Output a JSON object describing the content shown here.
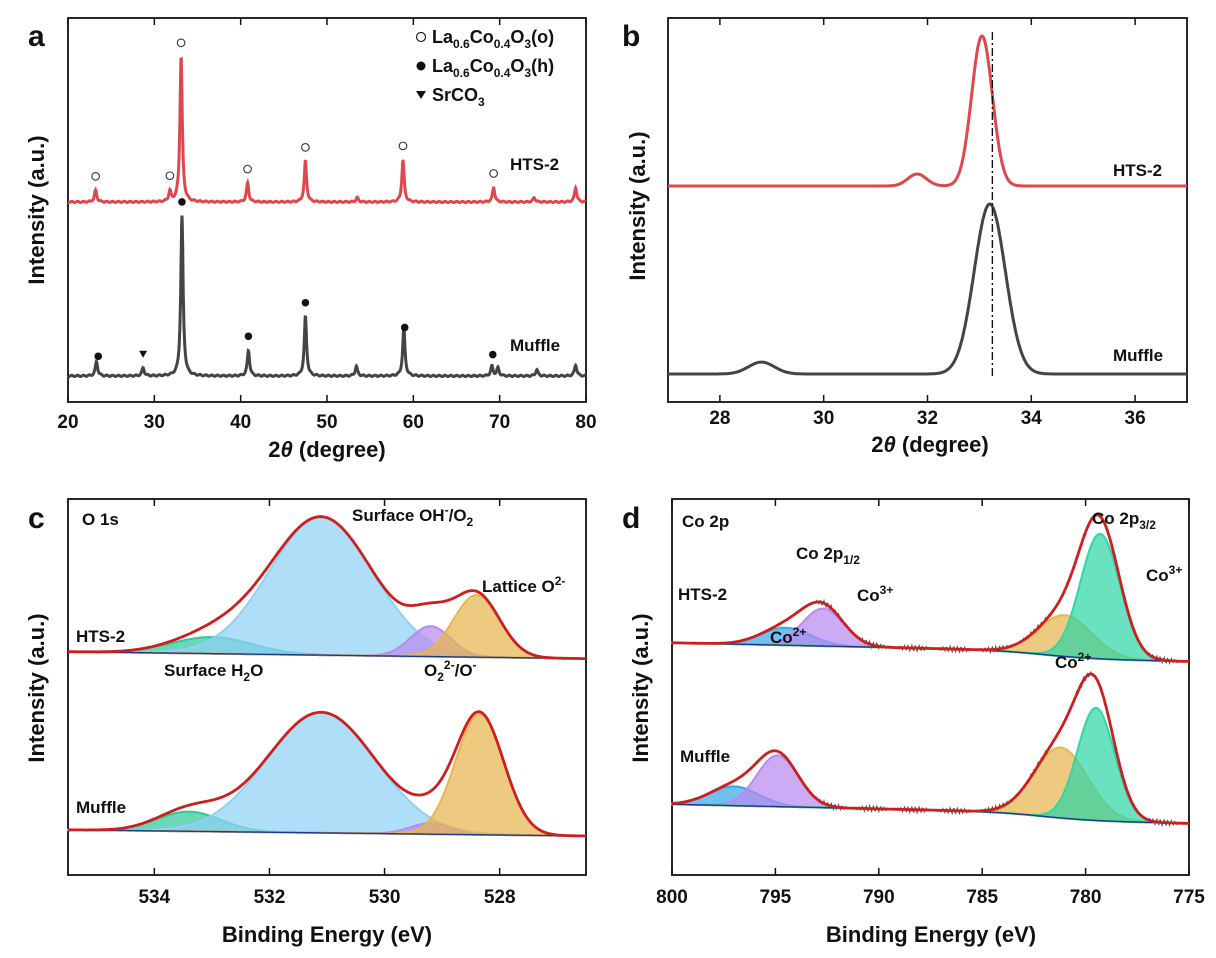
{
  "chart_data": [
    {
      "id": "a",
      "type": "line",
      "panel_label": "a",
      "xlabel": "2θ (degree)",
      "ylabel": "Intensity (a.u.)",
      "xlim": [
        20,
        80
      ],
      "xticks": [
        20,
        30,
        40,
        50,
        60,
        70,
        80
      ],
      "legend": [
        {
          "symbol": "○",
          "label": "La0.6Co0.4O3(o)",
          "base": "La",
          "sub1": "0.6",
          "mid": "Co",
          "sub2": "0.4",
          "mid2": "O",
          "sub3": "3",
          "tail": "(o)"
        },
        {
          "symbol": "●",
          "label": "La0.6Co0.4O3(h)",
          "base": "La",
          "sub1": "0.6",
          "mid": "Co",
          "sub2": "0.4",
          "mid2": "O",
          "sub3": "3",
          "tail": "(h)"
        },
        {
          "symbol": "▼",
          "label": "SrCO3",
          "base": "SrCO",
          "sub1": "3"
        }
      ],
      "series": [
        {
          "name": "HTS-2",
          "color": "#e0474c",
          "peaks": [
            {
              "x": 23.2,
              "h": 0.08
            },
            {
              "x": 31.8,
              "h": 0.07
            },
            {
              "x": 33.1,
              "h": 1.0
            },
            {
              "x": 40.8,
              "h": 0.13
            },
            {
              "x": 47.5,
              "h": 0.28
            },
            {
              "x": 53.5,
              "h": 0.03
            },
            {
              "x": 58.8,
              "h": 0.29
            },
            {
              "x": 69.3,
              "h": 0.1
            },
            {
              "x": 74.0,
              "h": 0.03
            },
            {
              "x": 78.8,
              "h": 0.1
            }
          ]
        },
        {
          "name": "Muffle",
          "color": "#444444",
          "peaks": [
            {
              "x": 23.3,
              "h": 0.09
            },
            {
              "x": 28.7,
              "h": 0.05
            },
            {
              "x": 33.2,
              "h": 1.0
            },
            {
              "x": 40.9,
              "h": 0.16
            },
            {
              "x": 47.5,
              "h": 0.37
            },
            {
              "x": 53.4,
              "h": 0.06
            },
            {
              "x": 58.9,
              "h": 0.3
            },
            {
              "x": 69.1,
              "h": 0.06
            },
            {
              "x": 69.8,
              "h": 0.05
            },
            {
              "x": 74.3,
              "h": 0.04
            },
            {
              "x": 78.8,
              "h": 0.07
            }
          ]
        }
      ],
      "markers": {
        "HTS-2": [
          {
            "x": 23.2,
            "symbol": "○"
          },
          {
            "x": 31.8,
            "symbol": "○"
          },
          {
            "x": 33.1,
            "symbol": "○"
          },
          {
            "x": 40.8,
            "symbol": "○"
          },
          {
            "x": 47.5,
            "symbol": "○"
          },
          {
            "x": 58.8,
            "symbol": "○"
          },
          {
            "x": 69.3,
            "symbol": "○"
          }
        ],
        "Muffle": [
          {
            "x": 23.5,
            "symbol": "●"
          },
          {
            "x": 28.7,
            "symbol": "▼"
          },
          {
            "x": 33.2,
            "symbol": "●"
          },
          {
            "x": 40.9,
            "symbol": "●"
          },
          {
            "x": 47.5,
            "symbol": "●"
          },
          {
            "x": 59.0,
            "symbol": "●"
          },
          {
            "x": 69.2,
            "symbol": "●"
          }
        ]
      }
    },
    {
      "id": "b",
      "type": "line",
      "panel_label": "b",
      "xlabel": "2θ (degree)",
      "ylabel": "Intensity (a.u.)",
      "xlim": [
        27,
        37
      ],
      "xticks": [
        28,
        30,
        32,
        34,
        36
      ],
      "reference_line_x": 33.25,
      "series": [
        {
          "name": "HTS-2",
          "color": "#e0474c",
          "peaks": [
            {
              "x": 31.8,
              "h": 0.08,
              "w": 0.18
            },
            {
              "x": 33.05,
              "h": 1.0,
              "w": 0.2
            }
          ]
        },
        {
          "name": "Muffle",
          "color": "#444444",
          "peaks": [
            {
              "x": 28.8,
              "h": 0.07,
              "w": 0.25
            },
            {
              "x": 33.2,
              "h": 1.0,
              "w": 0.3
            }
          ]
        }
      ]
    },
    {
      "id": "c",
      "type": "area",
      "panel_label": "c",
      "spectrum_label": "O 1s",
      "xlabel": "Binding Energy (eV)",
      "ylabel": "Intensity (a.u.)",
      "xlim": [
        535.5,
        526.5
      ],
      "xticks": [
        534,
        532,
        530,
        528
      ],
      "annotations": {
        "surface_oh": "Surface OH-/O2",
        "lattice_o": "Lattice O2-",
        "surface_h2o": "Surface H2O",
        "o2_o": "O22-/O-"
      },
      "samples": [
        {
          "name": "HTS-2",
          "components": [
            {
              "name": "Surface H2O",
              "center": 533.0,
              "h": 0.12,
              "w": 0.7,
              "color": "#30c89a"
            },
            {
              "name": "Surface OH-/O2",
              "center": 531.1,
              "h": 1.0,
              "w": 0.9,
              "color": "#8fd1f5"
            },
            {
              "name": "O22-/O-",
              "center": 529.2,
              "h": 0.22,
              "w": 0.35,
              "color": "#b98af0"
            },
            {
              "name": "Lattice O2-",
              "center": 528.4,
              "h": 0.45,
              "w": 0.4,
              "color": "#e8b64f"
            }
          ]
        },
        {
          "name": "Muffle",
          "components": [
            {
              "name": "Surface H2O",
              "center": 533.4,
              "h": 0.16,
              "w": 0.55,
              "color": "#30c89a"
            },
            {
              "name": "Surface OH-/O2",
              "center": 531.1,
              "h": 0.98,
              "w": 0.95,
              "color": "#8fd1f5"
            },
            {
              "name": "O22-/O-",
              "center": 529.2,
              "h": 0.09,
              "w": 0.35,
              "color": "#b98af0"
            },
            {
              "name": "Lattice O2-",
              "center": 528.35,
              "h": 0.98,
              "w": 0.42,
              "color": "#e8b64f"
            }
          ]
        }
      ]
    },
    {
      "id": "d",
      "type": "area",
      "panel_label": "d",
      "spectrum_label": "Co 2p",
      "xlabel": "Binding Energy (eV)",
      "ylabel": "Intensity (a.u.)",
      "xlim": [
        800,
        775
      ],
      "xticks": [
        800,
        795,
        790,
        785,
        780,
        775
      ],
      "annotations": {
        "co2p12": "Co 2p1/2",
        "co2p32": "Co 2p3/2",
        "co3_left": "Co3+",
        "co3_right": "Co3+",
        "co2_left": "Co2+",
        "co2_right": "Co2+"
      },
      "samples": [
        {
          "name": "HTS-2",
          "components": [
            {
              "name": "Co2+ 2p1/2",
              "center": 794.5,
              "h": 0.14,
              "w": 1.2,
              "color": "#3aa8e8"
            },
            {
              "name": "Co3+ 2p1/2",
              "center": 792.7,
              "h": 0.3,
              "w": 1.0,
              "color": "#b98af0"
            },
            {
              "name": "Co2+ 2p3/2",
              "center": 781.0,
              "h": 0.33,
              "w": 1.3,
              "color": "#e8b64f"
            },
            {
              "name": "Co3+ 2p3/2",
              "center": 779.3,
              "h": 1.0,
              "w": 0.95,
              "color": "#30d6a6"
            }
          ]
        },
        {
          "name": "Muffle",
          "components": [
            {
              "name": "Co2+ 2p1/2",
              "center": 797.0,
              "h": 0.15,
              "w": 1.2,
              "color": "#3aa8e8"
            },
            {
              "name": "Co3+ 2p1/2",
              "center": 794.9,
              "h": 0.4,
              "w": 1.0,
              "color": "#b98af0"
            },
            {
              "name": "Co2+ 2p3/2",
              "center": 781.2,
              "h": 0.55,
              "w": 1.3,
              "color": "#e8b64f"
            },
            {
              "name": "Co3+ 2p3/2",
              "center": 779.5,
              "h": 0.88,
              "w": 0.9,
              "color": "#30d6a6"
            }
          ]
        }
      ]
    }
  ]
}
